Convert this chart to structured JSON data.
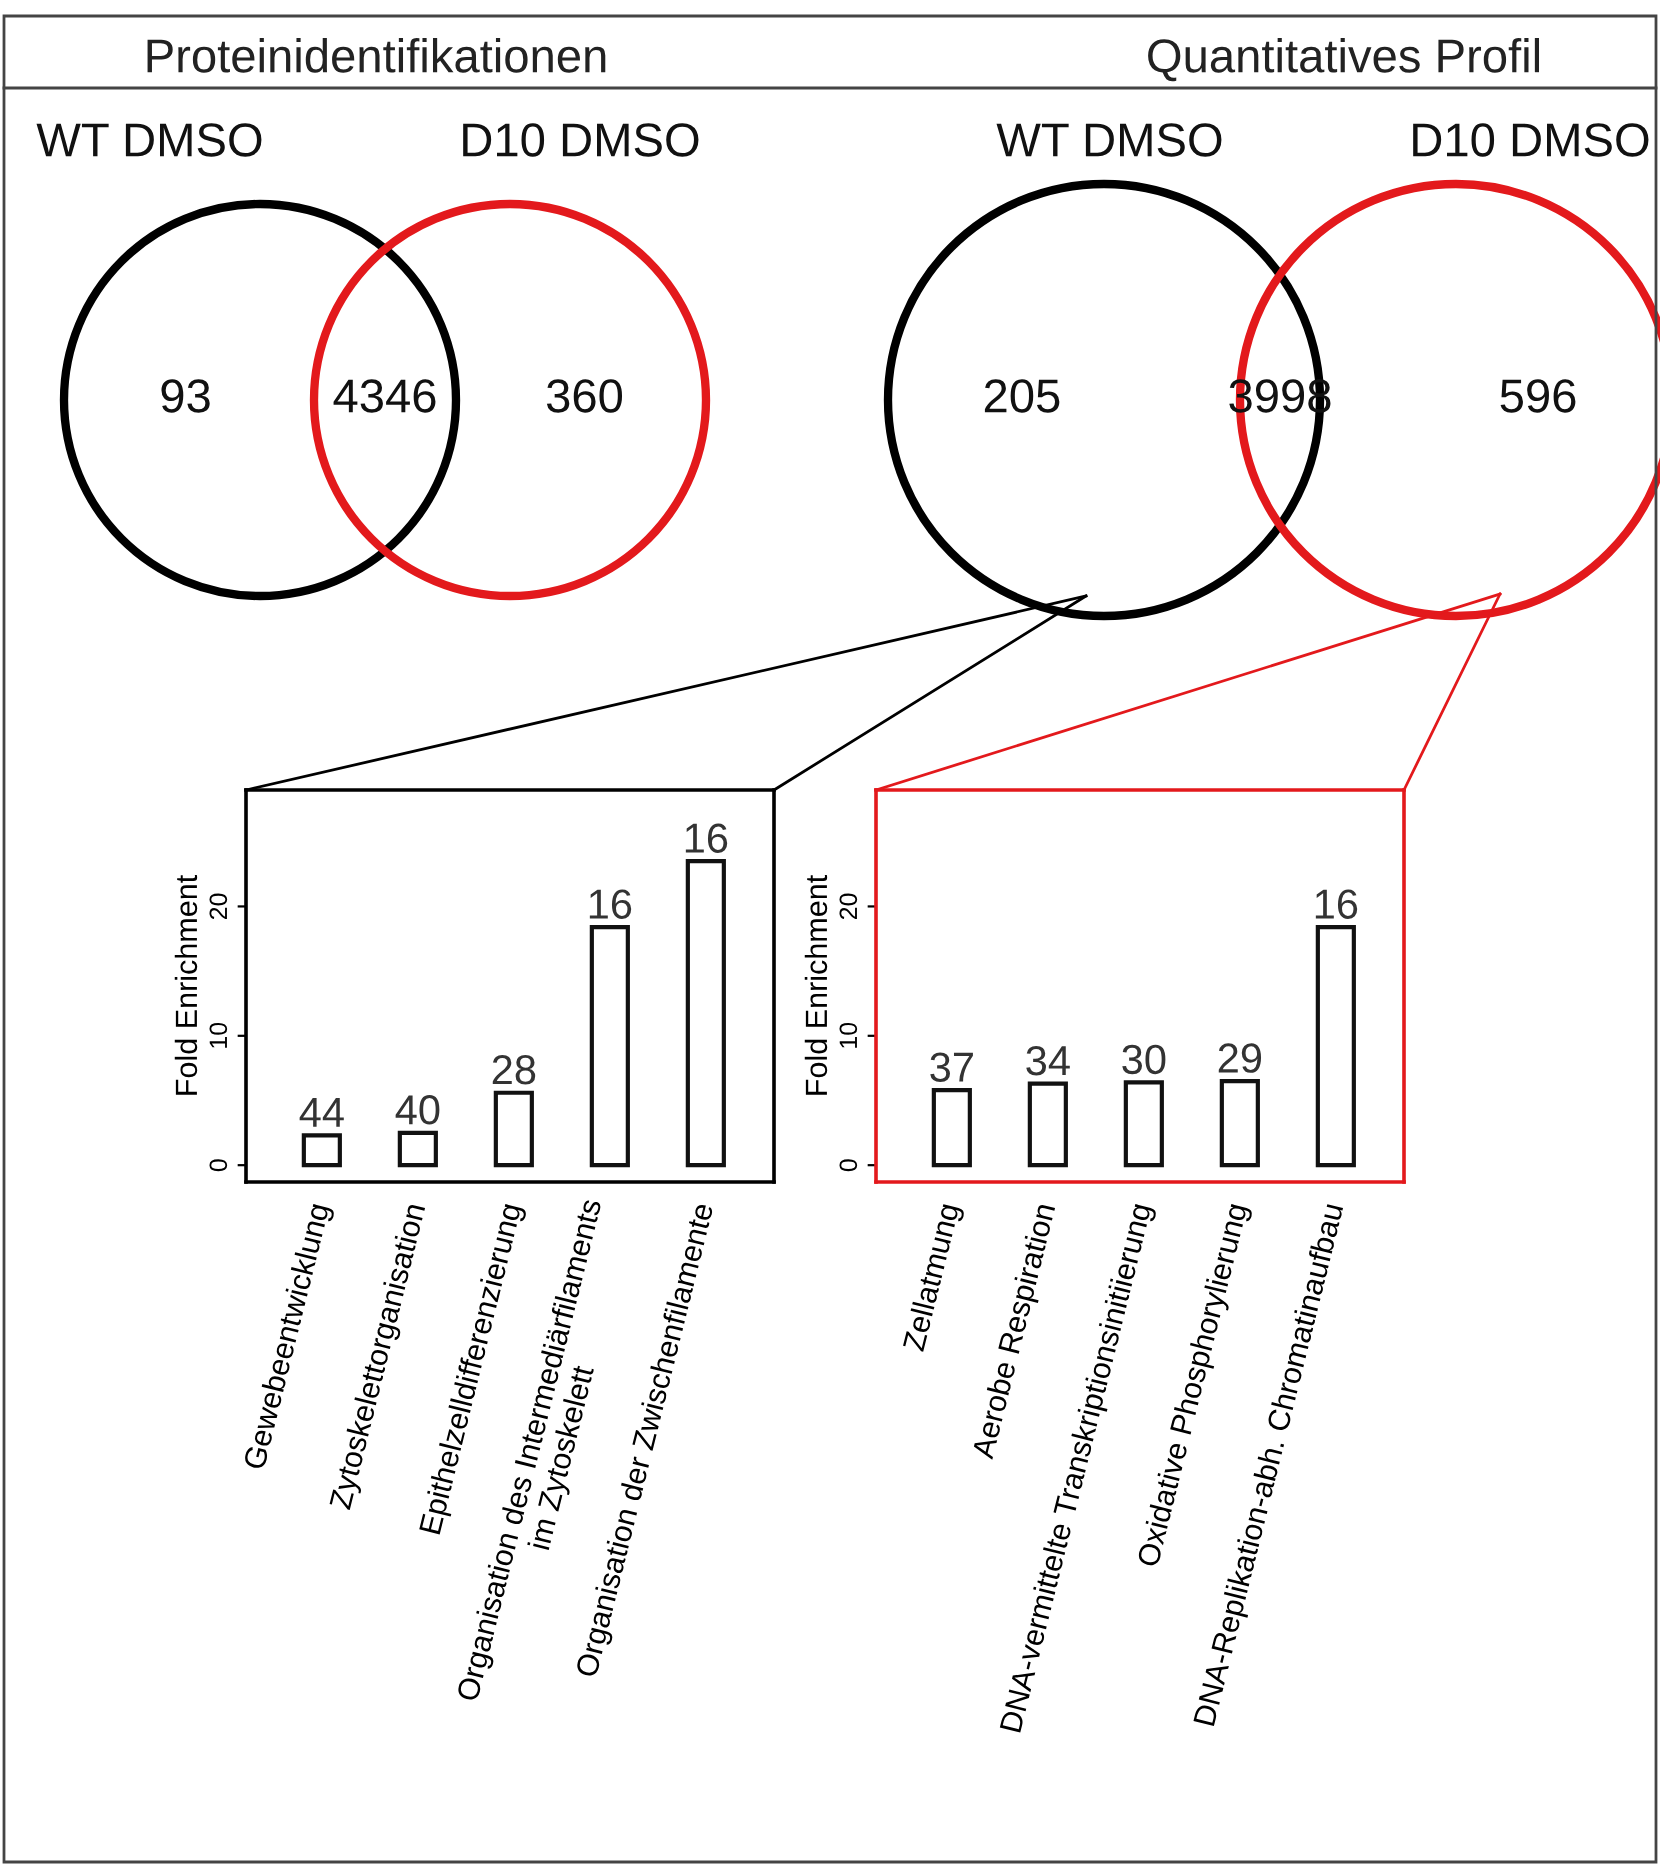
{
  "chart_data": [
    {
      "type": "other",
      "title": "Proteinidentifikationen",
      "annotations": [
        "WT DMSO",
        "D10 DMSO",
        "93",
        "4346",
        "360"
      ]
    },
    {
      "type": "other",
      "title": "Quantitatives Profil",
      "annotations": [
        "WT DMSO",
        "D10 DMSO",
        "205",
        "3998",
        "596"
      ]
    },
    {
      "type": "bar",
      "ylabel": "Fold Enrichment",
      "categories": [
        "Gewebeentwicklung",
        "Zytoskelettorganisation",
        "Epithelzelldifferenzierung",
        "Organisation des Intermediärfilaments\nim Zytoskelett",
        "Organisation der Zwischenfilamente"
      ],
      "values": [
        2.3,
        2.5,
        5.6,
        18.4,
        23.5
      ],
      "annotations": [
        {
          "text": "44",
          "x": "Gewebeentwicklung",
          "y": 2.3
        },
        {
          "text": "40",
          "x": "Zytoskelettorganisation",
          "y": 2.5
        },
        {
          "text": "28",
          "x": "Epithelzelldifferenzierung",
          "y": 5.6
        },
        {
          "text": "16",
          "x": "Organisation des Intermediärfilaments\nim Zytoskelett",
          "y": 18.4
        },
        {
          "text": "16",
          "x": "Organisation der Zwischenfilamente",
          "y": 23.5
        }
      ],
      "color": "#ffffff",
      "ylim": [
        -1.3,
        29
      ],
      "yticks": [
        0,
        10,
        20
      ],
      "grid": false,
      "legend": false
    },
    {
      "type": "bar",
      "ylabel": "Fold Enrichment",
      "categories": [
        "Zellatmung",
        "Aerobe Respiration",
        "DNA-vermittelte Transkriptionsinitiierung",
        "Oxidative Phosphorylierung",
        "DNA-Replikation-abh. Chromatinaufbau"
      ],
      "values": [
        5.8,
        6.3,
        6.4,
        6.5,
        18.4
      ],
      "annotations": [
        {
          "text": "37",
          "x": "Zellatmung",
          "y": 5.8
        },
        {
          "text": "34",
          "x": "Aerobe Respiration",
          "y": 6.3
        },
        {
          "text": "30",
          "x": "DNA-vermittelte Transkriptionsinitiierung",
          "y": 6.4
        },
        {
          "text": "29",
          "x": "Oxidative Phosphorylierung",
          "y": 6.5
        },
        {
          "text": "16",
          "x": "DNA-Replikation-abh. Chromatinaufbau",
          "y": 18.4
        }
      ],
      "color": "#ffffff",
      "ylim": [
        -1.3,
        29
      ],
      "yticks": [
        0,
        10,
        20
      ],
      "grid": false,
      "legend": false
    }
  ]
}
